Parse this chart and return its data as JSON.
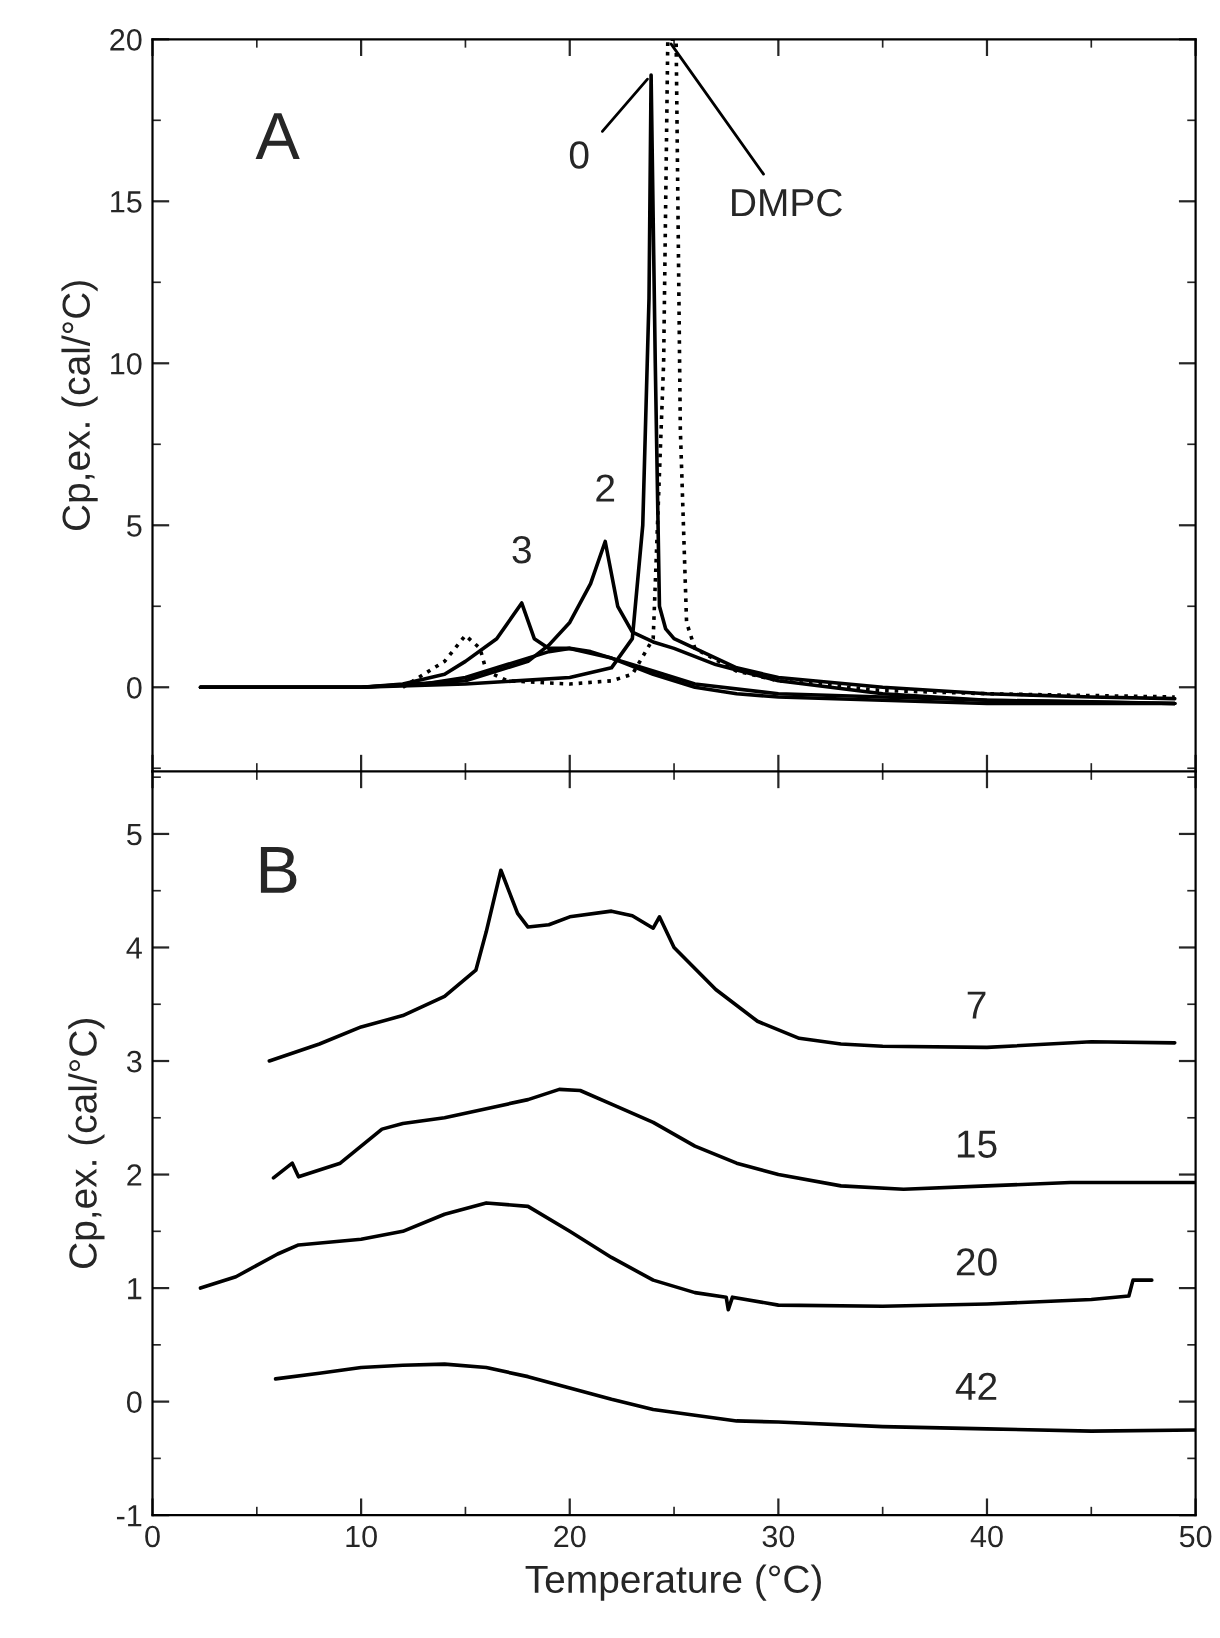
{
  "chart_data": [
    {
      "type": "line",
      "ylabel": "Cp,ex. (cal/°C)",
      "xlim": [
        0,
        50
      ],
      "ylim": [
        -2.6,
        20
      ],
      "xticks": [
        0,
        10,
        20,
        30,
        40,
        50
      ],
      "yticks": [
        0,
        5,
        10,
        15,
        20
      ],
      "tick_labels": "y",
      "grid": false,
      "marker": "none",
      "annotations": [
        "A"
      ],
      "series": [
        {
          "name": "0",
          "color": "#000000",
          "line_style": "solid",
          "x": [
            2.3,
            10,
            15,
            20,
            22,
            23,
            23.5,
            23.8,
            23.9,
            24.1,
            24.3,
            24.6,
            25,
            26,
            28,
            30,
            35,
            40,
            45,
            49
          ],
          "values": [
            0,
            0,
            0.1,
            0.3,
            0.6,
            1.5,
            5,
            12,
            18.9,
            10,
            2.5,
            1.8,
            1.5,
            1.2,
            0.6,
            0.3,
            0,
            -0.2,
            -0.3,
            -0.35
          ]
        },
        {
          "name": "2",
          "color": "#000000",
          "line_style": "solid",
          "x": [
            2.3,
            10,
            15,
            18,
            19,
            20,
            21,
            21.7,
            22.3,
            23,
            24,
            25,
            27,
            30,
            35,
            40,
            45,
            49
          ],
          "values": [
            0,
            0,
            0.2,
            0.8,
            1.3,
            2.0,
            3.2,
            4.5,
            2.5,
            1.7,
            1.4,
            1.2,
            0.7,
            0.2,
            -0.2,
            -0.4,
            -0.45,
            -0.5
          ]
        },
        {
          "name": "3",
          "color": "#000000",
          "line_style": "solid",
          "x": [
            2.3,
            10,
            12,
            14,
            15,
            16.5,
            17.7,
            18.3,
            19,
            20,
            22,
            24,
            26,
            30,
            35,
            40,
            49
          ],
          "values": [
            0,
            0,
            0.1,
            0.4,
            0.8,
            1.5,
            2.6,
            1.5,
            1.2,
            1.2,
            0.9,
            0.5,
            0.1,
            -0.2,
            -0.3,
            -0.4,
            -0.5
          ]
        },
        {
          "color": "#000000",
          "line_style": "solid",
          "x": [
            2.3,
            10,
            13,
            15,
            17,
            19,
            20,
            21,
            22,
            24,
            26,
            28,
            30,
            35,
            40,
            49
          ],
          "values": [
            0,
            0,
            0.1,
            0.3,
            0.7,
            1.1,
            1.2,
            1.1,
            0.9,
            0.4,
            0,
            -0.2,
            -0.3,
            -0.4,
            -0.5,
            -0.5
          ]
        },
        {
          "name": "DMPC",
          "color": "#000000",
          "line_style": "dotted",
          "x": [
            12,
            14,
            15,
            15.7,
            16,
            17,
            20,
            22,
            23,
            24,
            24.5,
            24.7,
            25.1,
            25.3,
            25.6,
            26,
            28,
            30,
            35,
            40,
            49
          ],
          "values": [
            0,
            0.8,
            1.6,
            1.2,
            0.5,
            0.2,
            0.1,
            0.2,
            0.4,
            1.5,
            10,
            20,
            20,
            8,
            2,
            1.2,
            0.5,
            0.2,
            -0.1,
            -0.2,
            -0.3
          ]
        }
      ]
    },
    {
      "type": "line",
      "xlabel": "Temperature (°C)",
      "ylabel": "Cp,ex. (cal/°C)",
      "xlim": [
        0,
        50
      ],
      "ylim": [
        -1,
        5.55
      ],
      "xticks": [
        0,
        10,
        20,
        30,
        40,
        50
      ],
      "yticks": [
        -1,
        0,
        1,
        2,
        3,
        4,
        5
      ],
      "grid": false,
      "marker": "none",
      "annotations": [
        "B"
      ],
      "series": [
        {
          "name": "7",
          "color": "#000000",
          "line_style": "solid",
          "x": [
            5.6,
            8,
            10,
            12,
            14,
            15.5,
            16,
            16.7,
            17.5,
            18,
            19,
            20,
            22,
            23,
            24,
            24.3,
            25,
            27,
            29,
            31,
            33,
            35,
            40,
            45,
            49
          ],
          "values": [
            3.0,
            3.15,
            3.3,
            3.4,
            3.57,
            3.8,
            4.14,
            4.68,
            4.3,
            4.18,
            4.2,
            4.27,
            4.32,
            4.28,
            4.17,
            4.27,
            4.0,
            3.63,
            3.35,
            3.2,
            3.15,
            3.13,
            3.12,
            3.17,
            3.16
          ]
        },
        {
          "name": "15",
          "color": "#000000",
          "line_style": "solid",
          "x": [
            5.8,
            6.7,
            7,
            9,
            11,
            12,
            14,
            16,
            18,
            19.5,
            20.5,
            22,
            24,
            26,
            28,
            30,
            33,
            36,
            40,
            44,
            50
          ],
          "values": [
            1.97,
            2.1,
            1.98,
            2.1,
            2.4,
            2.45,
            2.5,
            2.58,
            2.66,
            2.75,
            2.74,
            2.62,
            2.46,
            2.25,
            2.1,
            2.0,
            1.9,
            1.87,
            1.9,
            1.93,
            1.93
          ]
        },
        {
          "name": "20",
          "color": "#000000",
          "line_style": "solid",
          "x": [
            2.3,
            4,
            6,
            7,
            10,
            12,
            14,
            16,
            18,
            20,
            22,
            24,
            26,
            27.5,
            27.6,
            27.8,
            30,
            35,
            40,
            45,
            46.8,
            47,
            47.9
          ],
          "values": [
            1.0,
            1.1,
            1.3,
            1.38,
            1.43,
            1.5,
            1.65,
            1.75,
            1.72,
            1.5,
            1.27,
            1.07,
            0.96,
            0.92,
            0.81,
            0.92,
            0.85,
            0.84,
            0.86,
            0.9,
            0.93,
            1.07,
            1.07
          ]
        },
        {
          "name": "42",
          "color": "#000000",
          "line_style": "solid",
          "x": [
            5.9,
            8,
            10,
            12,
            14,
            16,
            18,
            20,
            22,
            24,
            26,
            28,
            30,
            35,
            40,
            45,
            50
          ],
          "values": [
            0.2,
            0.25,
            0.3,
            0.32,
            0.33,
            0.3,
            0.22,
            0.12,
            0.02,
            -0.07,
            -0.12,
            -0.17,
            -0.18,
            -0.22,
            -0.24,
            -0.26,
            -0.25
          ]
        }
      ]
    }
  ]
}
